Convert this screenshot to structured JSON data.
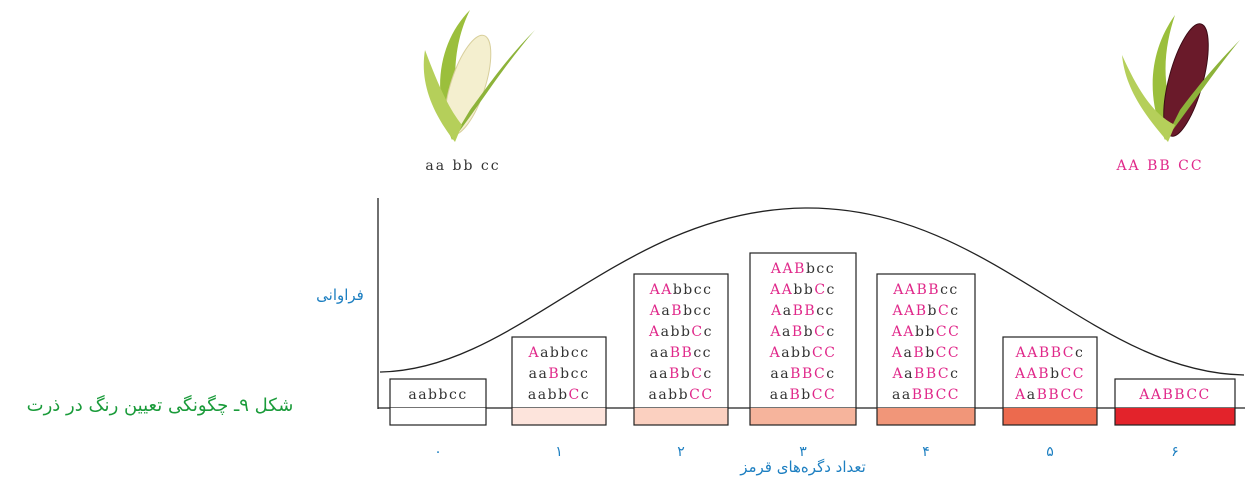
{
  "parents": [
    {
      "label": "aa bb cc"
    },
    {
      "label": "AA BB CC"
    }
  ],
  "y_axis_label": "فراوانی",
  "x_axis_label": "تعداد دگره‌های قرمز",
  "caption": "شکل ۹ـ چگونگی تعیین رنگ در ذرت",
  "groups": [
    {
      "label": "۰",
      "color": "#ffffff",
      "genotypes": [
        "aabbcc"
      ]
    },
    {
      "label": "۱",
      "color": "#fde4dc",
      "genotypes": [
        "Aabbcc",
        "aaBbcc",
        "aabbCc"
      ]
    },
    {
      "label": "۲",
      "color": "#fbd0c0",
      "genotypes": [
        "AAbbcc",
        "AaBbcc",
        "AabbCc",
        "aaBBcc",
        "aaBbCc",
        "aabbCC"
      ]
    },
    {
      "label": "۳",
      "color": "#f6b49c",
      "genotypes": [
        "AABbcc",
        "AAbbCc",
        "AaBBcc",
        "AaBbCc",
        "AabbCC",
        "aaBBCc",
        "aaBbCC"
      ]
    },
    {
      "label": "۴",
      "color": "#f19679",
      "genotypes": [
        "AABBcc",
        "AABbCc",
        "AAbbCC",
        "AaBbCC",
        "AaBBCc",
        "aaBBCC"
      ]
    },
    {
      "label": "۵",
      "color": "#ec6a4e",
      "genotypes": [
        "AABBCc",
        "AABbCC",
        "AaBBCC"
      ]
    },
    {
      "label": "۶",
      "color": "#e3232b",
      "genotypes": [
        "AABBCC"
      ]
    }
  ]
}
